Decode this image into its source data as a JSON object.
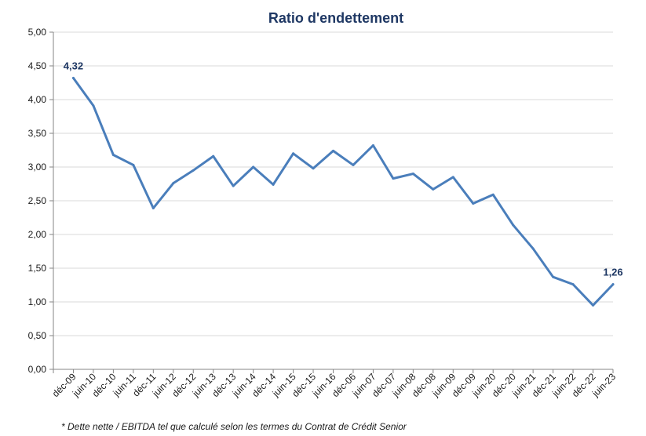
{
  "chart_data": {
    "type": "line",
    "title": "Ratio d'endettement",
    "xlabel": "",
    "ylabel": "",
    "categories": [
      "déc-09",
      "juin-10",
      "déc-10",
      "juin-11",
      "déc-11",
      "juin-12",
      "déc-12",
      "juin-13",
      "déc-13",
      "juin-14",
      "déc-14",
      "juin-15",
      "déc-15",
      "juin-16",
      "déc-06",
      "juin-07",
      "déc-07",
      "juin-08",
      "déc-08",
      "juin-09",
      "déc-09",
      "juin-20",
      "déc-20",
      "juin-21",
      "déc-21",
      "juin-22",
      "déc-22",
      "juin-23"
    ],
    "series": [
      {
        "values": [
          4.32,
          3.91,
          3.18,
          3.03,
          2.39,
          2.76,
          2.95,
          3.16,
          2.72,
          3.0,
          2.74,
          3.2,
          2.98,
          3.24,
          3.03,
          3.32,
          2.83,
          2.9,
          2.67,
          2.85,
          2.46,
          2.59,
          2.14,
          1.79,
          1.37,
          1.26,
          0.95,
          1.26
        ]
      }
    ],
    "ylim": [
      0,
      5
    ],
    "yticks": [
      "0,00",
      "0,50",
      "1,00",
      "1,50",
      "2,00",
      "2,50",
      "3,00",
      "3,50",
      "4,00",
      "4,50",
      "5,00"
    ],
    "data_labels": [
      {
        "index": 0,
        "text": "4,32"
      },
      {
        "index": 27,
        "text": "1,26"
      }
    ],
    "grid": true,
    "line_color": "#4a7ebb"
  },
  "footnote": "* Dette nette / EBITDA tel que calculé selon les termes du Contrat de Crédit Senior"
}
